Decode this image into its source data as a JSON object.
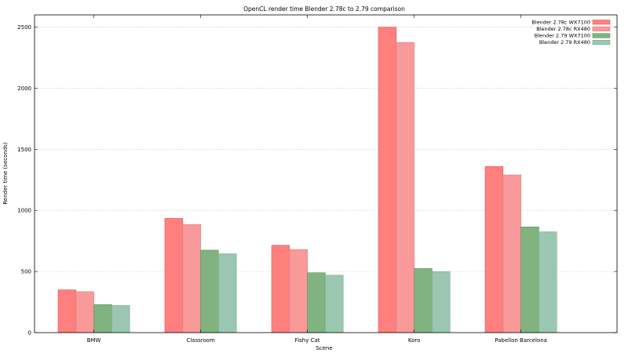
{
  "chart_data": {
    "type": "bar",
    "title": "OpenCL render time Blender 2.78c to 2.79 comparison",
    "xlabel": "Scene",
    "ylabel": "Render time (seconds)",
    "categories": [
      "BMW",
      "Classroom",
      "Fishy Cat",
      "Koro",
      "Pabellon Barcelona"
    ],
    "series": [
      {
        "name": "Blender 2.78c WX7100",
        "color": "#ff7f7f",
        "edge": "#e05a5a",
        "values": [
          350,
          935,
          715,
          2500,
          1360
        ]
      },
      {
        "name": "Blender 2.78c RX480",
        "color": "#f89a9a",
        "edge": "#e07a7a",
        "values": [
          335,
          885,
          680,
          2375,
          1290
        ]
      },
      {
        "name": "Blender 2.79 WX7100",
        "color": "#80b37f",
        "edge": "#5e935e",
        "values": [
          230,
          675,
          490,
          525,
          865
        ]
      },
      {
        "name": "Blender 2.79 RX480",
        "color": "#9bc7b2",
        "edge": "#7aa794",
        "values": [
          222,
          645,
          470,
          500,
          825
        ]
      }
    ],
    "ylim": [
      0,
      2600
    ],
    "yticks": [
      0,
      500,
      1000,
      1500,
      2000,
      2500
    ],
    "grid": "horizontal",
    "legend": "top-right"
  }
}
